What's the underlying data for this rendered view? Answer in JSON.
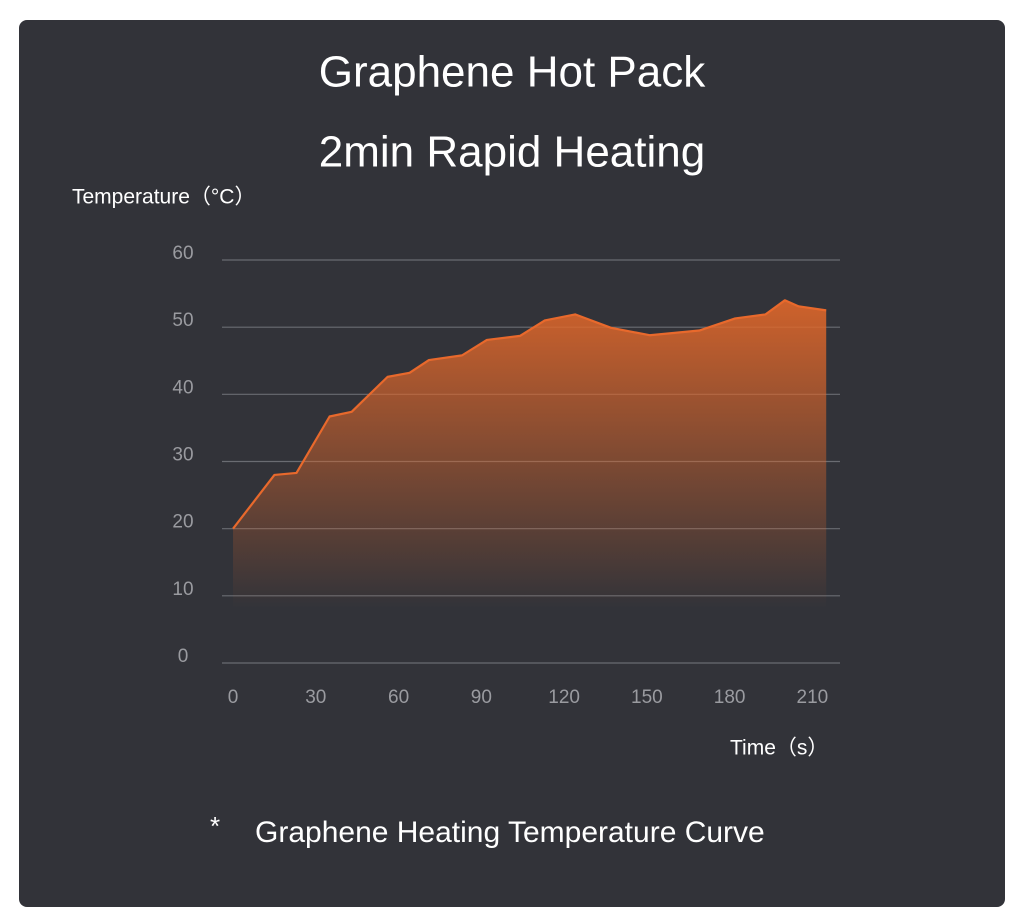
{
  "chart_data": {
    "type": "area-line",
    "title": "Graphene Hot Pack",
    "subtitle": "2min Rapid Heating",
    "y_label": "Temperature（°C）",
    "x_label": "Time（s）",
    "note_marker": "*",
    "note": "Graphene Heating Temperature Curve",
    "x": [
      0,
      15,
      23,
      35,
      43,
      56,
      64,
      71,
      83,
      92,
      104,
      113,
      124,
      137,
      151,
      169,
      182,
      193,
      200,
      205,
      215
    ],
    "series": [
      {
        "name": "Temperature",
        "color": "#e8692c",
        "values": [
          20,
          28,
          28.3,
          36.7,
          37.4,
          42.6,
          43.2,
          45.1,
          45.8,
          48.1,
          48.7,
          51,
          51.9,
          49.9,
          48.8,
          49.5,
          51.3,
          51.9,
          54,
          53.1,
          52.5
        ]
      }
    ],
    "xlim": [
      -4,
      220
    ],
    "xticks": [
      0,
      30,
      60,
      90,
      120,
      150,
      180,
      210
    ],
    "ylim": [
      0,
      60
    ],
    "yticks": [
      0,
      10,
      20,
      30,
      40,
      50,
      60
    ],
    "grid": true
  }
}
